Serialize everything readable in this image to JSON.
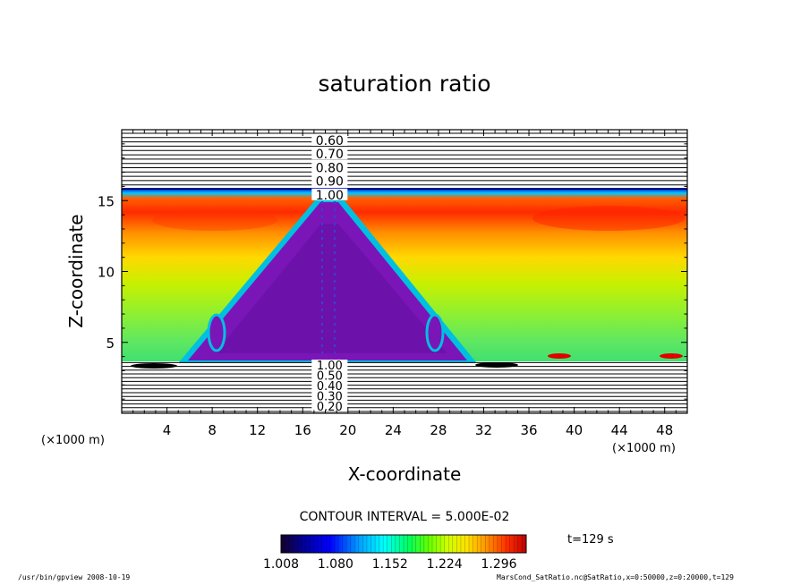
{
  "chart_data": {
    "type": "heatmap",
    "title": "saturation ratio",
    "xlabel": "X-coordinate",
    "ylabel": "Z-coordinate",
    "x_unit": "(×1000 m)",
    "z_unit": "(×1000 m)",
    "xlim": [
      0,
      50
    ],
    "ylim": [
      0,
      20
    ],
    "x_ticks": [
      "4",
      "8",
      "12",
      "16",
      "20",
      "24",
      "28",
      "32",
      "36",
      "40",
      "44",
      "48"
    ],
    "y_ticks": [
      "5",
      "10",
      "15"
    ],
    "contour_labels_top": [
      "0.60",
      "0.70",
      "0.80",
      "0.90",
      "1.00"
    ],
    "contour_labels_bottom": [
      "1.00",
      "0.50",
      "0.40",
      "0.30",
      "0.20"
    ],
    "contour_interval_label": "CONTOUR INTERVAL = 5.000E-02",
    "colorbar": {
      "min": 1.008,
      "max": 1.332,
      "tick_labels": [
        "1.008",
        "1.080",
        "1.152",
        "1.224",
        "1.296"
      ],
      "colors": [
        "#14002a",
        "#0000a0",
        "#0000ff",
        "#00a0ff",
        "#00ffff",
        "#00ff60",
        "#60ff00",
        "#d0ff00",
        "#ffe000",
        "#ff9000",
        "#ff3000",
        "#c00000"
      ]
    },
    "time_label": "t=129 s",
    "cloud_layer_z": [
      3.7,
      15.8
    ],
    "cloud_top_peak_x": 18.3,
    "cloud_base_left_x": 5.5,
    "cloud_base_right_x": 30.5
  },
  "footer": {
    "left": "/usr/bin/gpview   2008-10-19",
    "right": "MarsCond_SatRatio.nc@SatRatio,x=0:50000,z=0:20000,t=129"
  }
}
